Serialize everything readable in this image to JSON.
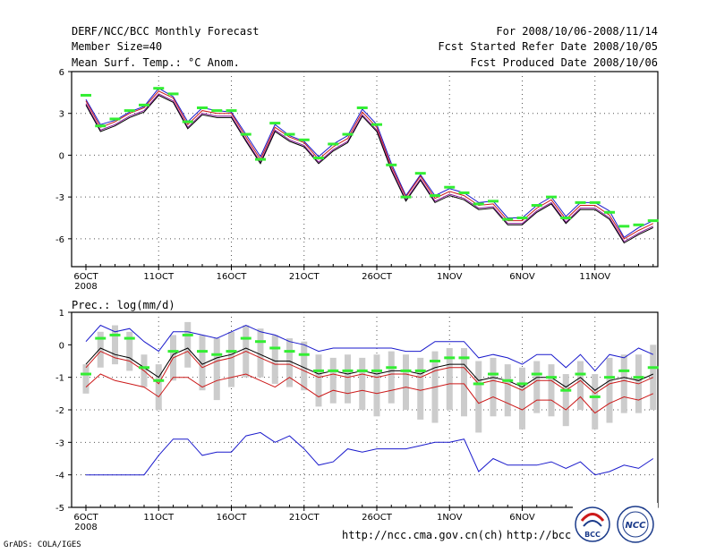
{
  "header": {
    "line1_left": "DERF/NCC/BCC Monthly Forecast",
    "line2_left": "Member Size=40",
    "line3_left": "Mean Surf. Temp.: °C Anom.",
    "line1_right": "For 2008/10/06-2008/11/14",
    "line2_right": "Fcst Started Refer Date 2008/10/05",
    "line3_right": "Fcst Produced Date 2008/10/06"
  },
  "footer": {
    "grads": "GrADS: COLA/IGES",
    "url1": "http://ncc.cma.gov.cn(ch)",
    "url2": "http://bcc.",
    "logo1": "BCC",
    "logo2": "NCC"
  },
  "colors": {
    "green": "#33ee33",
    "blue": "#1a1acc",
    "red": "#cc1a1a",
    "purple": "#8a1a9a",
    "box": "#cccccc"
  },
  "chart_data": [
    {
      "type": "line",
      "title": "Mean Surf. Temp.: °C Anom.",
      "x_tick_labels": [
        "6OCT",
        "11OCT",
        "16OCT",
        "21OCT",
        "26OCT",
        "1NOV",
        "6NOV",
        "11NOV"
      ],
      "x_tick_year": "2008",
      "y_ticks": [
        "6",
        "3",
        "0",
        "-3",
        "-6"
      ],
      "ylim": [
        -8,
        6
      ],
      "days": 40,
      "series": [
        {
          "name": "green markers",
          "values": [
            4.3,
            2.1,
            2.6,
            3.2,
            3.6,
            4.8,
            4.4,
            2.4,
            3.4,
            3.2,
            3.2,
            1.5,
            -0.3,
            2.3,
            1.5,
            1.1,
            -0.2,
            0.8,
            1.5,
            3.4,
            2.2,
            -0.7,
            -3.0,
            -1.3,
            -2.9,
            -2.3,
            -2.7,
            -3.5,
            -3.3,
            -4.6,
            -4.5,
            -3.6,
            -3.0,
            -4.5,
            -3.4,
            -3.4,
            -4.1,
            -5.1,
            -5.0,
            -4.7
          ]
        },
        {
          "name": "upper",
          "values": [
            4.0,
            2.2,
            2.5,
            3.1,
            3.5,
            4.8,
            4.2,
            2.4,
            3.4,
            3.2,
            3.1,
            1.5,
            -0.1,
            2.2,
            1.4,
            1.0,
            -0.1,
            0.8,
            1.4,
            3.3,
            2.2,
            -0.6,
            -2.9,
            -1.4,
            -2.9,
            -2.4,
            -2.7,
            -3.4,
            -3.3,
            -4.5,
            -4.5,
            -3.6,
            -3.0,
            -4.4,
            -3.4,
            -3.4,
            -4.0,
            -5.9,
            -5.2,
            -4.7
          ]
        },
        {
          "name": "mean",
          "values": [
            3.9,
            2.0,
            2.4,
            3.0,
            3.4,
            4.6,
            4.1,
            2.2,
            3.2,
            3.0,
            3.0,
            1.3,
            -0.3,
            2.0,
            1.3,
            0.9,
            -0.3,
            0.6,
            1.2,
            3.1,
            2.0,
            -0.8,
            -3.0,
            -1.5,
            -3.1,
            -2.6,
            -2.9,
            -3.6,
            -3.5,
            -4.7,
            -4.7,
            -3.8,
            -3.2,
            -4.6,
            -3.6,
            -3.6,
            -4.3,
            -6.0,
            -5.4,
            -4.9
          ]
        },
        {
          "name": "lower",
          "values": [
            3.7,
            1.8,
            2.2,
            2.8,
            3.2,
            4.4,
            3.9,
            2.0,
            3.0,
            2.8,
            2.8,
            1.1,
            -0.5,
            1.8,
            1.1,
            0.7,
            -0.5,
            0.4,
            1.0,
            2.9,
            1.8,
            -1.0,
            -3.2,
            -1.7,
            -3.3,
            -2.8,
            -3.1,
            -3.8,
            -3.7,
            -4.9,
            -4.9,
            -4.0,
            -3.4,
            -4.8,
            -3.8,
            -3.8,
            -4.5,
            -6.2,
            -5.6,
            -5.1
          ]
        }
      ]
    },
    {
      "type": "box",
      "title": "Prec.: log(mm/d)",
      "x_tick_labels": [
        "6OCT",
        "11OCT",
        "16OCT",
        "21OCT",
        "26OCT",
        "1NOV",
        "6NOV",
        "11NOV"
      ],
      "x_tick_year": "2008",
      "y_ticks": [
        "1",
        "0",
        "-1",
        "-2",
        "-3",
        "-4",
        "-5"
      ],
      "ylim": [
        -5,
        1
      ],
      "days": 40,
      "series": [
        {
          "name": "green markers",
          "values": [
            -0.9,
            0.2,
            0.3,
            0.2,
            -0.7,
            -1.1,
            -0.2,
            0.3,
            -0.2,
            -0.3,
            -0.2,
            0.2,
            0.1,
            -0.1,
            -0.2,
            -0.3,
            -0.8,
            -0.8,
            -0.8,
            -0.8,
            -0.8,
            -0.7,
            -0.8,
            -0.8,
            -0.5,
            -0.4,
            -0.4,
            -1.2,
            -0.9,
            -1.1,
            -1.2,
            -0.9,
            -1.0,
            -1.4,
            -0.9,
            -1.6,
            -1.0,
            -0.8,
            -1.0,
            -0.7
          ]
        },
        {
          "name": "box top",
          "values": [
            -0.6,
            0.4,
            0.6,
            0.4,
            -0.3,
            -0.6,
            0.3,
            0.7,
            0.3,
            0.2,
            0.4,
            0.6,
            0.5,
            0.3,
            0.2,
            0.1,
            -0.3,
            -0.4,
            -0.3,
            -0.4,
            -0.3,
            -0.2,
            -0.3,
            -0.4,
            -0.2,
            -0.1,
            -0.1,
            -0.5,
            -0.4,
            -0.6,
            -0.7,
            -0.5,
            -0.6,
            -0.9,
            -0.5,
            -0.9,
            -0.4,
            -0.3,
            -0.3,
            0.0
          ]
        },
        {
          "name": "box bottom",
          "values": [
            -1.5,
            -0.7,
            -0.6,
            -0.8,
            -1.3,
            -2.0,
            -1.1,
            -0.7,
            -1.4,
            -1.7,
            -1.3,
            -1.0,
            -1.0,
            -1.2,
            -1.3,
            -1.4,
            -1.9,
            -1.8,
            -1.8,
            -2.0,
            -2.2,
            -1.8,
            -2.0,
            -2.3,
            -2.4,
            -2.0,
            -2.2,
            -2.7,
            -2.2,
            -2.2,
            -2.6,
            -2.1,
            -2.2,
            -2.5,
            -2.0,
            -2.6,
            -2.4,
            -2.1,
            -2.1,
            -2.0
          ]
        },
        {
          "name": "blue upper",
          "values": [
            0.1,
            0.6,
            0.4,
            0.5,
            0.1,
            -0.2,
            0.4,
            0.4,
            0.3,
            0.2,
            0.4,
            0.6,
            0.4,
            0.3,
            0.1,
            0.0,
            -0.2,
            -0.1,
            -0.1,
            -0.1,
            -0.1,
            -0.1,
            -0.2,
            -0.2,
            0.1,
            0.1,
            0.1,
            -0.4,
            -0.3,
            -0.4,
            -0.6,
            -0.3,
            -0.3,
            -0.7,
            -0.3,
            -0.8,
            -0.3,
            -0.4,
            -0.1,
            -0.3
          ]
        },
        {
          "name": "black mean",
          "values": [
            -0.6,
            -0.1,
            -0.3,
            -0.4,
            -0.7,
            -1.0,
            -0.3,
            -0.1,
            -0.6,
            -0.4,
            -0.3,
            -0.1,
            -0.3,
            -0.5,
            -0.5,
            -0.7,
            -0.9,
            -0.8,
            -0.9,
            -0.8,
            -0.9,
            -0.8,
            -0.8,
            -0.9,
            -0.7,
            -0.6,
            -0.6,
            -1.1,
            -1.0,
            -1.1,
            -1.3,
            -1.0,
            -1.0,
            -1.3,
            -1.0,
            -1.4,
            -1.1,
            -1.0,
            -1.1,
            -0.9
          ]
        },
        {
          "name": "red mean",
          "values": [
            -0.7,
            -0.2,
            -0.4,
            -0.5,
            -0.8,
            -1.2,
            -0.4,
            -0.2,
            -0.7,
            -0.5,
            -0.4,
            -0.2,
            -0.4,
            -0.6,
            -0.6,
            -0.8,
            -1.0,
            -0.9,
            -1.0,
            -0.9,
            -1.0,
            -0.9,
            -0.9,
            -1.0,
            -0.8,
            -0.7,
            -0.7,
            -1.2,
            -1.1,
            -1.2,
            -1.4,
            -1.1,
            -1.1,
            -1.4,
            -1.1,
            -1.5,
            -1.2,
            -1.1,
            -1.2,
            -1.0
          ]
        },
        {
          "name": "red lower",
          "values": [
            -1.3,
            -0.9,
            -1.1,
            -1.2,
            -1.3,
            -1.6,
            -1.0,
            -1.0,
            -1.3,
            -1.1,
            -1.0,
            -0.9,
            -1.1,
            -1.3,
            -1.0,
            -1.3,
            -1.6,
            -1.4,
            -1.5,
            -1.4,
            -1.5,
            -1.4,
            -1.3,
            -1.4,
            -1.3,
            -1.2,
            -1.2,
            -1.8,
            -1.6,
            -1.8,
            -2.0,
            -1.7,
            -1.7,
            -2.0,
            -1.6,
            -2.1,
            -1.8,
            -1.6,
            -1.7,
            -1.5
          ]
        },
        {
          "name": "blue lower",
          "values": [
            -4.0,
            -4.0,
            -4.0,
            -4.0,
            -4.0,
            -3.4,
            -2.9,
            -2.9,
            -3.4,
            -3.3,
            -3.3,
            -2.8,
            -2.7,
            -3.0,
            -2.8,
            -3.2,
            -3.7,
            -3.6,
            -3.2,
            -3.3,
            -3.2,
            -3.2,
            -3.2,
            -3.1,
            -3.0,
            -3.0,
            -2.9,
            -3.9,
            -3.5,
            -3.7,
            -3.7,
            -3.7,
            -3.6,
            -3.8,
            -3.6,
            -4.0,
            -3.9,
            -3.7,
            -3.8,
            -3.5
          ]
        }
      ]
    }
  ]
}
